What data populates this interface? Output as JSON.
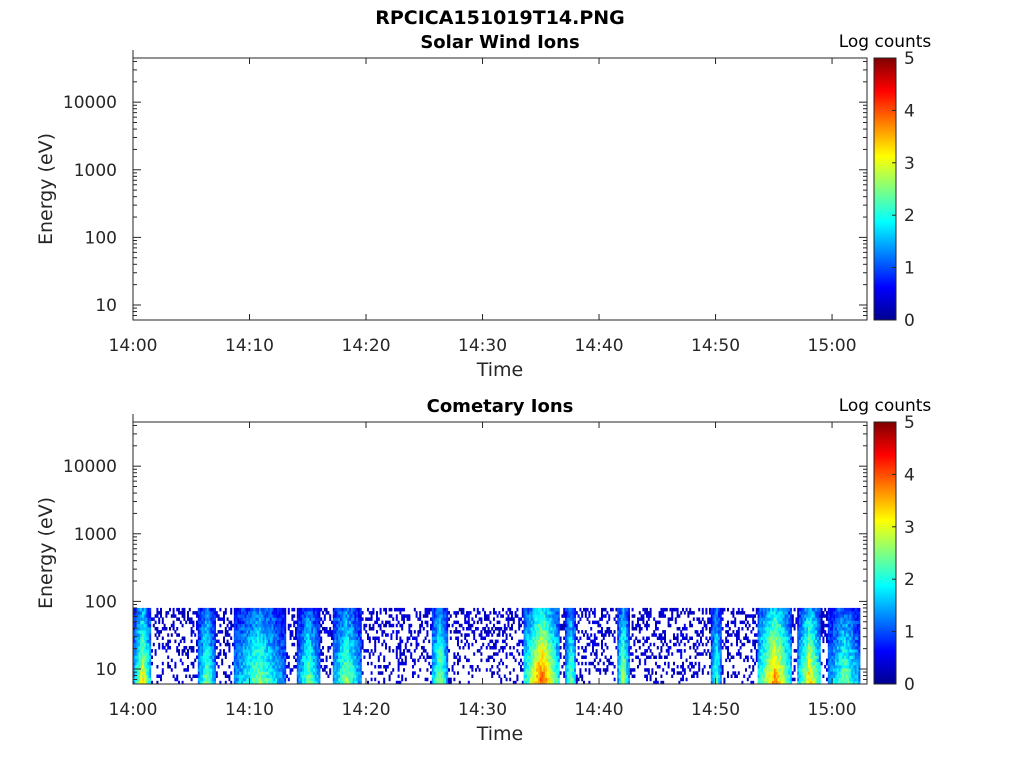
{
  "figure_title": "RPCICA151019T14.PNG",
  "colors": {
    "colormap": [
      "#00008f",
      "#0000ff",
      "#0080ff",
      "#00ffff",
      "#80ff80",
      "#ffff00",
      "#ff8000",
      "#ff0000",
      "#800000"
    ],
    "axis": "#262626",
    "background": "#ffffff"
  },
  "chart_data": [
    {
      "type": "heatmap",
      "title": "Solar Wind Ions",
      "xlabel": "Time",
      "ylabel": "Energy (eV)",
      "x_tick_labels": [
        "14:00",
        "14:10",
        "14:20",
        "14:30",
        "14:40",
        "14:50",
        "15:00"
      ],
      "x_range_minutes": [
        0,
        63
      ],
      "y_tick_labels": [
        "10",
        "100",
        "1000",
        "10000"
      ],
      "y_scale": "log",
      "y_range_eV": [
        6,
        45000
      ],
      "colorbar": {
        "title": "Log counts",
        "ticks": [
          "0",
          "1",
          "2",
          "3",
          "4",
          "5"
        ],
        "range": [
          0,
          5
        ]
      },
      "data": []
    },
    {
      "type": "heatmap",
      "title": "Cometary Ions",
      "xlabel": "Time",
      "ylabel": "Energy (eV)",
      "x_tick_labels": [
        "14:00",
        "14:10",
        "14:20",
        "14:30",
        "14:40",
        "14:50",
        "15:00"
      ],
      "x_range_minutes": [
        0,
        63
      ],
      "y_tick_labels": [
        "10",
        "100",
        "1000",
        "10000"
      ],
      "y_scale": "log",
      "y_range_eV": [
        6,
        45000
      ],
      "colorbar": {
        "title": "Log counts",
        "ticks": [
          "0",
          "1",
          "2",
          "3",
          "4",
          "5"
        ],
        "range": [
          0,
          5
        ]
      },
      "max_energy_eV": 80,
      "events": [
        {
          "start_min": 0.0,
          "end_min": 1.5,
          "peak_log_counts": 3.2
        },
        {
          "start_min": 5.5,
          "end_min": 7.0,
          "peak_log_counts": 2.6
        },
        {
          "start_min": 8.5,
          "end_min": 13.0,
          "peak_log_counts": 2.6
        },
        {
          "start_min": 14.0,
          "end_min": 16.0,
          "peak_log_counts": 2.5
        },
        {
          "start_min": 17.0,
          "end_min": 19.5,
          "peak_log_counts": 2.7
        },
        {
          "start_min": 25.5,
          "end_min": 27.0,
          "peak_log_counts": 2.8
        },
        {
          "start_min": 33.5,
          "end_min": 36.5,
          "peak_log_counts": 4.1
        },
        {
          "start_min": 37.0,
          "end_min": 38.0,
          "peak_log_counts": 2.7
        },
        {
          "start_min": 41.5,
          "end_min": 42.5,
          "peak_log_counts": 3.0
        },
        {
          "start_min": 49.5,
          "end_min": 50.5,
          "peak_log_counts": 2.4
        },
        {
          "start_min": 53.5,
          "end_min": 56.5,
          "peak_log_counts": 3.8
        },
        {
          "start_min": 57.0,
          "end_min": 59.0,
          "peak_log_counts": 3.4
        },
        {
          "start_min": 59.5,
          "end_min": 62.5,
          "peak_log_counts": 2.5
        }
      ]
    }
  ]
}
